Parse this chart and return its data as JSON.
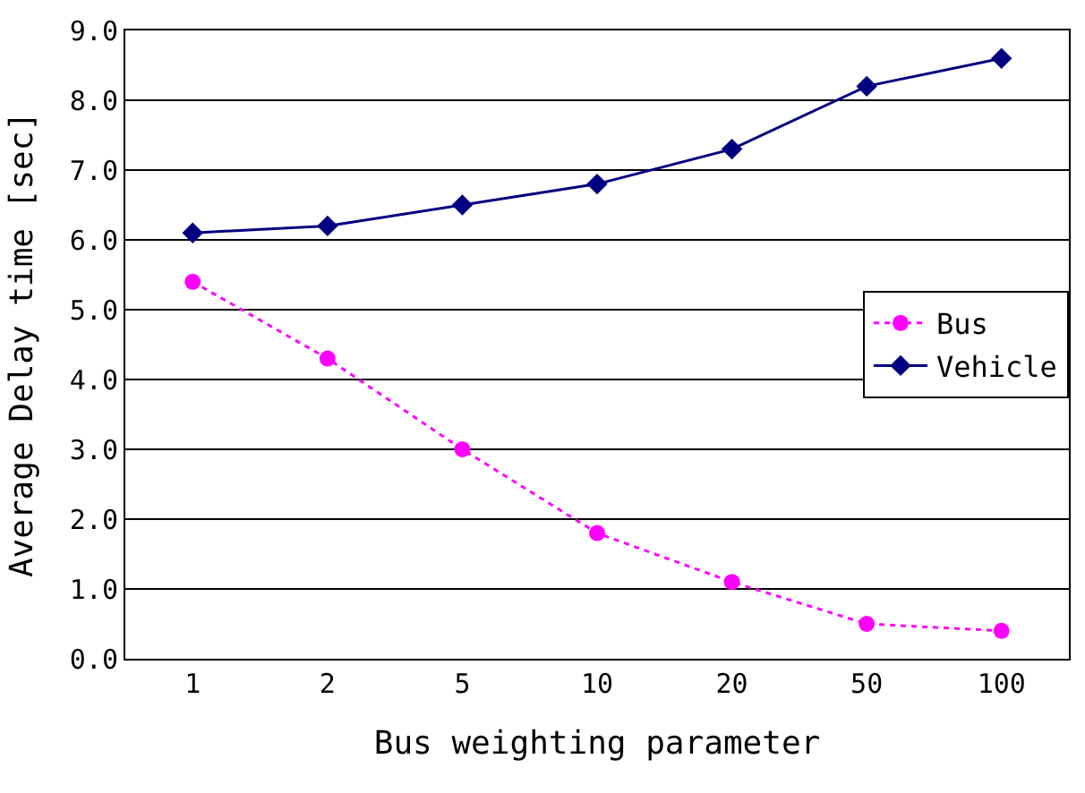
{
  "chart_data": {
    "type": "line",
    "xlabel": "Bus weighting parameter",
    "ylabel": "Average Delay time [sec]",
    "categories": [
      "1",
      "2",
      "5",
      "10",
      "20",
      "50",
      "100"
    ],
    "series": [
      {
        "name": "Bus",
        "color": "#ff00ff",
        "marker": "circle",
        "line_style": "dotted",
        "values": [
          5.4,
          4.3,
          3.0,
          1.8,
          1.1,
          0.5,
          0.4
        ]
      },
      {
        "name": "Vehicle",
        "color": "#000080",
        "marker": "diamond",
        "line_style": "solid",
        "values": [
          6.1,
          6.2,
          6.5,
          6.8,
          7.3,
          8.2,
          8.6
        ]
      }
    ],
    "ylim": [
      0,
      9
    ],
    "yticks": [
      {
        "value": 0,
        "label": "0.0"
      },
      {
        "value": 1,
        "label": "1.0"
      },
      {
        "value": 2,
        "label": "2.0"
      },
      {
        "value": 3,
        "label": "3.0"
      },
      {
        "value": 4,
        "label": "4.0"
      },
      {
        "value": 5,
        "label": "5.0"
      },
      {
        "value": 6,
        "label": "6.0"
      },
      {
        "value": 7,
        "label": "7.0"
      },
      {
        "value": 8,
        "label": "8.0"
      },
      {
        "value": 9,
        "label": "9.0"
      }
    ],
    "grid": "y",
    "legend": "right"
  }
}
